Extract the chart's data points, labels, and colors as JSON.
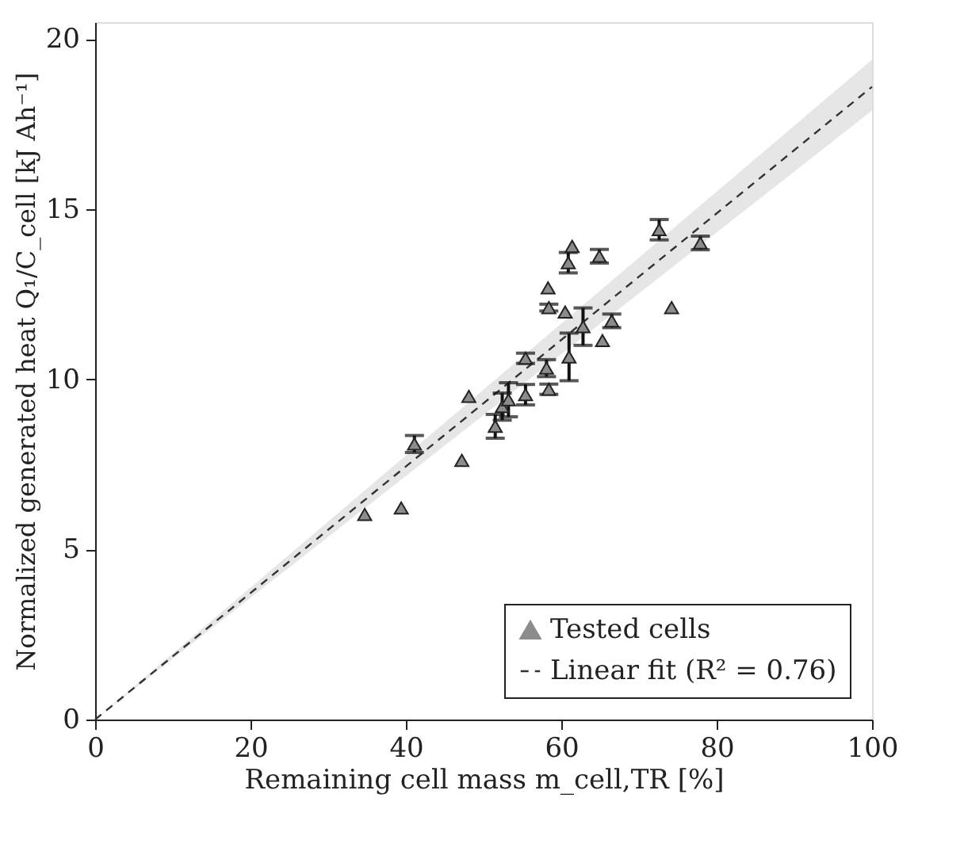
{
  "chart_data": {
    "type": "scatter",
    "xlabel": "Remaining cell mass m_cell,TR [%]",
    "ylabel": "Normalized generated heat Q₁/C_cell [kJ Ah⁻¹]",
    "xlim": [
      0,
      100
    ],
    "ylim": [
      0,
      20.5
    ],
    "xticks": [
      0,
      20,
      40,
      60,
      80,
      100
    ],
    "yticks": [
      0,
      5,
      10,
      15,
      20
    ],
    "grid": false,
    "legend": "bottom right",
    "series": [
      {
        "name": "Tested cells",
        "marker": "triangle",
        "color": "#8c8c8c",
        "x": [
          34.7,
          39.4,
          41.1,
          47.2,
          48.1,
          51.5,
          52.4,
          53.2,
          55.4,
          55.4,
          58.1,
          58.4,
          58.3,
          58.4,
          60.5,
          61.0,
          60.9,
          61.4,
          62.8,
          65.3,
          64.9,
          66.5,
          72.6,
          74.2,
          77.9
        ],
        "values": [
          6.03,
          6.22,
          8.1,
          7.62,
          9.5,
          8.62,
          9.2,
          9.4,
          9.55,
          10.62,
          10.33,
          9.71,
          12.69,
          12.11,
          11.98,
          10.66,
          13.43,
          13.91,
          11.55,
          11.14,
          13.62,
          11.72,
          14.4,
          12.11,
          14.01
        ],
        "errors": [
          null,
          null,
          0.25,
          null,
          null,
          0.35,
          0.4,
          0.5,
          0.3,
          0.15,
          0.25,
          0.15,
          null,
          0.1,
          null,
          0.7,
          0.3,
          null,
          0.55,
          null,
          0.2,
          0.2,
          0.3,
          null,
          0.2
        ]
      },
      {
        "name": "Linear fit (R² = 0.76)",
        "type": "line",
        "line_style": "dashed",
        "color": "#333333",
        "x": [
          0,
          100
        ],
        "values": [
          0,
          18.6
        ],
        "lower": [
          0,
          17.9
        ],
        "upper": [
          0,
          19.4
        ]
      }
    ]
  }
}
